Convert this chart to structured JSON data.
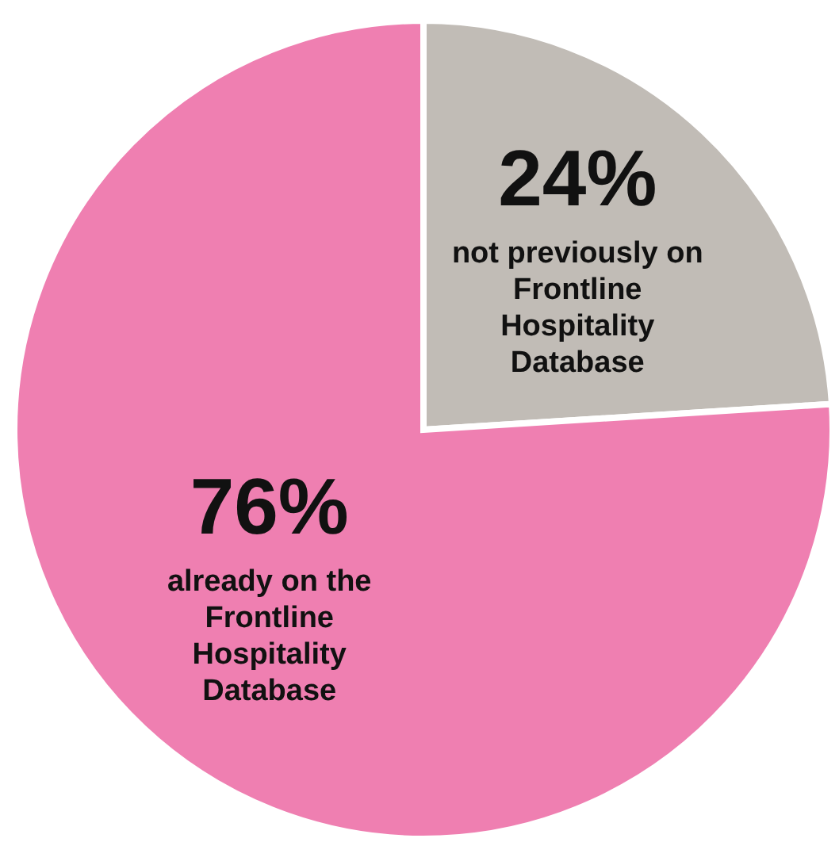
{
  "chart_data": {
    "type": "pie",
    "categories": [
      "not previously on Frontline Hospitality Database",
      "already on the Frontline Hospitality Database"
    ],
    "values": [
      24,
      76
    ],
    "colors": [
      "#c1bcb6",
      "#ef7fb1"
    ],
    "value_labels": [
      "24%",
      "76%"
    ],
    "legend": false
  }
}
